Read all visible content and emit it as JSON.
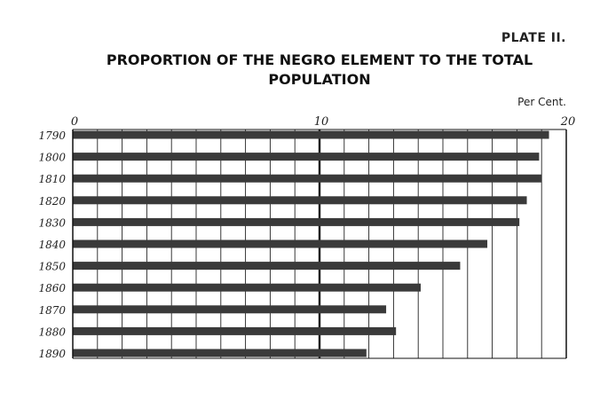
{
  "plate": "PLATE II.",
  "chart_data": {
    "type": "bar",
    "orientation": "horizontal",
    "title_lines": [
      "PROPORTION OF THE NEGRO ELEMENT TO THE TOTAL",
      "POPULATION"
    ],
    "unit_label": "Per Cent.",
    "categories": [
      "1790",
      "1800",
      "1810",
      "1820",
      "1830",
      "1840",
      "1850",
      "1860",
      "1870",
      "1880",
      "1890"
    ],
    "values": [
      19.3,
      18.9,
      19.0,
      18.4,
      18.1,
      16.8,
      15.7,
      14.1,
      12.7,
      13.1,
      11.9
    ],
    "xlim": [
      0,
      20
    ],
    "x_ticks": [
      0,
      10,
      20
    ],
    "grid": true,
    "colors": {
      "bar": "#3a3a3a",
      "axis": "#111111",
      "grid": "#222222"
    }
  }
}
